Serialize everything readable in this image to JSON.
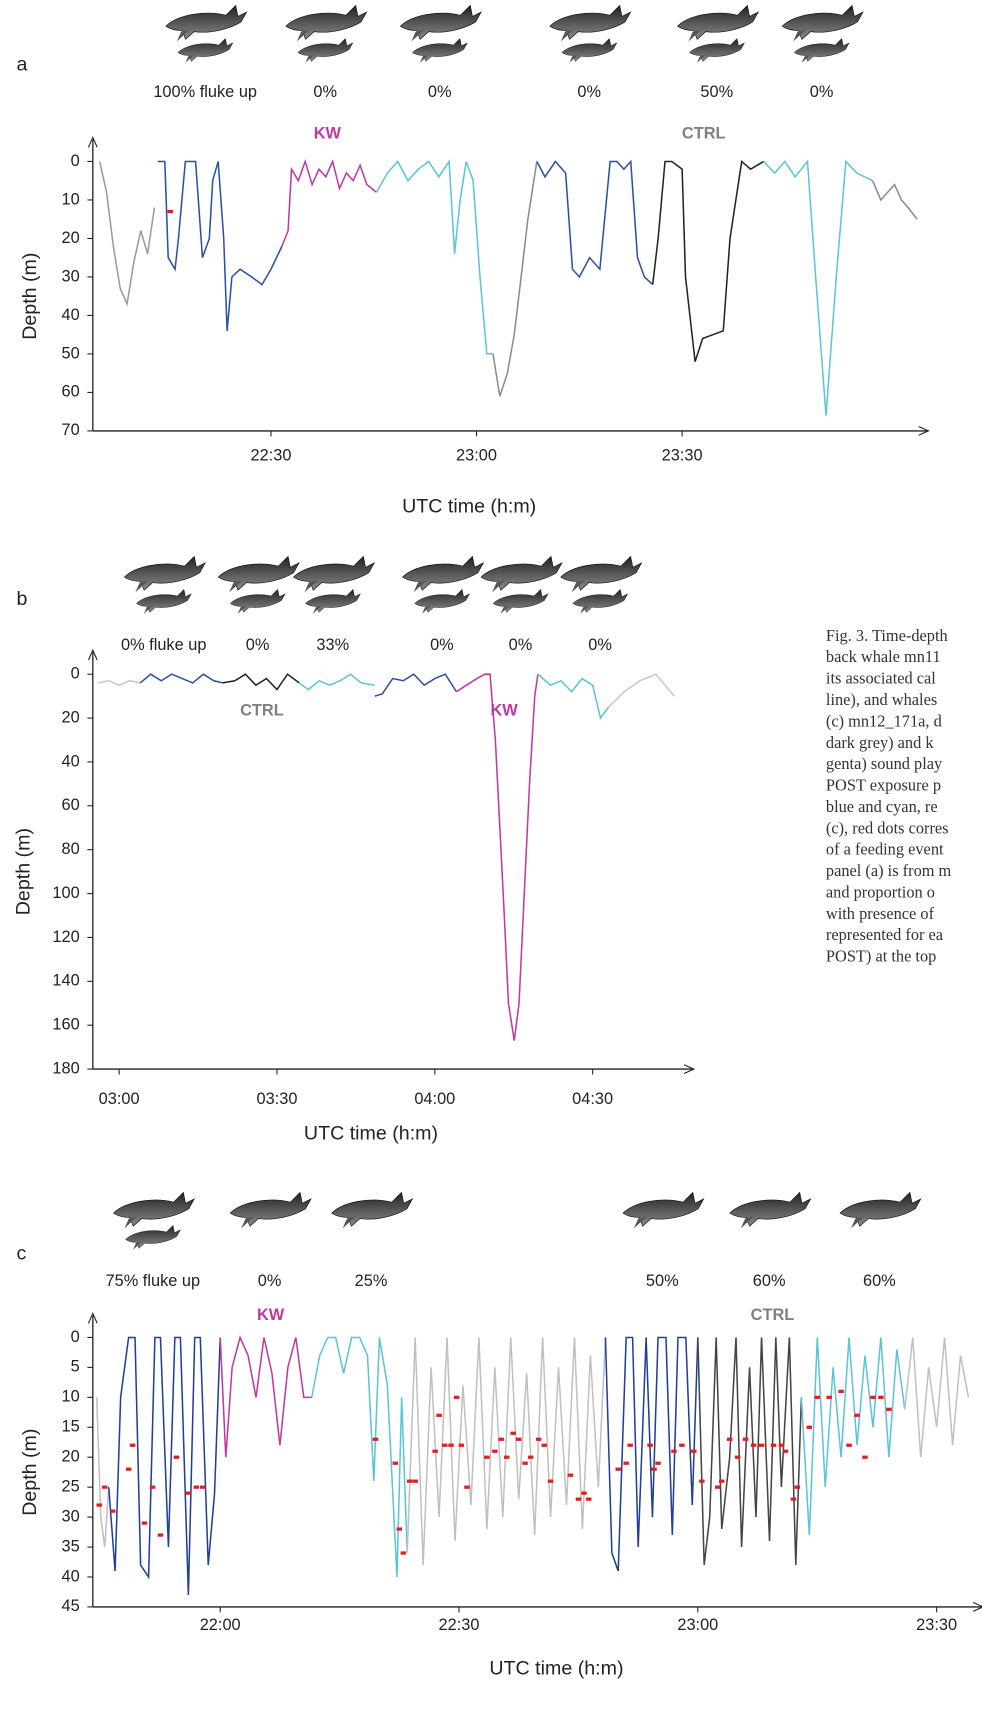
{
  "chart_data": [
    {
      "type": "line",
      "panel": "a",
      "y_inverted": true,
      "period_labels": [
        "100% fluke up",
        "0%",
        "0%",
        "0%",
        "50%",
        "0%"
      ],
      "markers": [
        {
          "text": "KW",
          "color": "#c0399e"
        },
        {
          "text": "CTRL",
          "color": "#808080"
        }
      ],
      "ylabel": "Depth (m)",
      "xlabel": "UTC time (h:m)",
      "xlim": [
        1324,
        1445
      ],
      "ylim": [
        0,
        70
      ],
      "xticks": [
        {
          "value": 1350,
          "label": "22:30"
        },
        {
          "value": 1380,
          "label": "23:00"
        },
        {
          "value": 1410,
          "label": "23:30"
        }
      ],
      "yticks": [
        0,
        10,
        20,
        30,
        40,
        50,
        60,
        70
      ],
      "series": [
        {
          "color": "#9a9a9a",
          "x": [
            1325,
            1326,
            1327,
            1328,
            1329,
            1330,
            1331,
            1332,
            1333
          ],
          "values": [
            0,
            8,
            22,
            33,
            37,
            26,
            18,
            24,
            12
          ]
        },
        {
          "color": "#2b4fa6",
          "x": [
            1333.5,
            1334.5,
            1335,
            1336,
            1336.5,
            1337.5,
            1339,
            1340,
            1341,
            1341.5,
            1342.3,
            1343.1,
            1343.6,
            1344.3,
            1345.5,
            1347.2,
            1348.7,
            1350,
            1351.6
          ],
          "values": [
            0,
            0,
            25,
            28,
            20,
            0,
            0,
            25,
            20,
            5,
            0,
            20,
            44,
            30,
            28,
            30,
            32,
            28,
            22
          ]
        },
        {
          "color": "#c0399e",
          "x": [
            1351.6,
            1352.5,
            1353,
            1354,
            1355,
            1356,
            1357,
            1358,
            1359,
            1360,
            1361,
            1362,
            1363,
            1364,
            1365.4
          ],
          "values": [
            22,
            18,
            2,
            5,
            0,
            6,
            2,
            4,
            0,
            7,
            3,
            5,
            1,
            6,
            8
          ]
        },
        {
          "color": "#5bc4d8",
          "x": [
            1365.4,
            1367,
            1368.5,
            1370,
            1371.5,
            1373,
            1374.5,
            1376,
            1376.8,
            1377.6,
            1378.5,
            1379.5,
            1380.5,
            1381.5,
            1382.4
          ],
          "values": [
            8,
            3,
            0,
            5,
            2,
            0,
            4,
            0,
            24,
            10,
            0,
            5,
            30,
            50,
            50
          ]
        },
        {
          "color": "#8a8a8a",
          "x": [
            1382.4,
            1383.4,
            1384.5,
            1385.5,
            1386.5,
            1387.5,
            1388.8
          ],
          "values": [
            50,
            61,
            55,
            45,
            30,
            15,
            0
          ]
        },
        {
          "color": "#2b4fa6",
          "x": [
            1388.8,
            1390,
            1391.5,
            1393,
            1394,
            1395,
            1396.5,
            1398,
            1399.5,
            1400.5,
            1401.5,
            1402.5,
            1403.5,
            1404.5,
            1405.7
          ],
          "values": [
            0,
            4,
            0,
            3,
            28,
            30,
            25,
            28,
            0,
            0,
            2,
            0,
            25,
            30,
            32
          ]
        },
        {
          "color": "#222222",
          "x": [
            1405.7,
            1406.5,
            1407.5,
            1408.5,
            1410,
            1410.5,
            1411.9,
            1413,
            1414.5,
            1416,
            1417,
            1418.7,
            1420,
            1421.9
          ],
          "values": [
            32,
            20,
            0,
            0,
            2,
            30,
            52,
            46,
            45,
            44,
            20,
            0,
            2,
            0
          ]
        },
        {
          "color": "#5bc4d8",
          "x": [
            1421.9,
            1423.5,
            1425,
            1426.5,
            1428.3,
            1429.5,
            1431,
            1432.5,
            1433.9,
            1435.5,
            1437.8
          ],
          "values": [
            0,
            3,
            0,
            4,
            0,
            30,
            66,
            30,
            0,
            3,
            5
          ]
        },
        {
          "color": "#8a8a8a",
          "x": [
            1437.8,
            1439,
            1440,
            1441,
            1442,
            1443,
            1444.3
          ],
          "values": [
            5,
            10,
            8,
            6,
            10,
            12,
            15
          ]
        }
      ],
      "feeding_events": {
        "color": "#e02020",
        "x": [
          1335.3
        ],
        "values": [
          13
        ]
      }
    },
    {
      "type": "line",
      "panel": "b",
      "y_inverted": true,
      "period_labels": [
        "0% fluke up",
        "0%",
        "33%",
        "0%",
        "0%",
        "0%"
      ],
      "markers": [
        {
          "text": "CTRL",
          "color": "#808080"
        },
        {
          "text": "KW",
          "color": "#c0399e"
        }
      ],
      "ylabel": "Depth (m)",
      "xlabel": "UTC time (h:m)",
      "xlim": [
        175,
        288
      ],
      "ylim": [
        0,
        180
      ],
      "xticks": [
        {
          "value": 180,
          "label": "03:00"
        },
        {
          "value": 210,
          "label": "03:30"
        },
        {
          "value": 240,
          "label": "04:00"
        },
        {
          "value": 270,
          "label": "04:30"
        }
      ],
      "yticks": [
        0,
        20,
        40,
        60,
        80,
        100,
        120,
        140,
        160,
        180
      ],
      "series": [
        {
          "color": "#c8c8c8",
          "x": [
            176,
            178,
            180,
            182,
            184
          ],
          "values": [
            4,
            3,
            5,
            3,
            4
          ]
        },
        {
          "color": "#2b4fa6",
          "x": [
            184,
            186,
            188,
            190,
            192,
            194,
            196,
            198,
            199.7
          ],
          "values": [
            4,
            0,
            3,
            0,
            2,
            4,
            0,
            3,
            4
          ]
        },
        {
          "color": "#222222",
          "x": [
            199.7,
            202,
            204,
            206,
            208,
            210,
            212,
            214.2
          ],
          "values": [
            4,
            3,
            0,
            5,
            2,
            7,
            0,
            4
          ]
        },
        {
          "color": "#5bc4d8",
          "x": [
            214.2,
            216,
            218,
            220,
            222,
            224,
            226,
            228.6
          ],
          "values": [
            4,
            7,
            3,
            5,
            3,
            0,
            4,
            5
          ]
        },
        {
          "color": "#2b4fa6",
          "x": [
            228.6,
            230,
            232,
            234,
            236,
            238,
            240,
            242,
            244.1
          ],
          "values": [
            10,
            9,
            2,
            3,
            0,
            5,
            2,
            0,
            8
          ]
        },
        {
          "color": "#c0399e",
          "x": [
            244.1,
            246,
            248,
            249.5,
            250.5,
            251.5,
            253,
            254,
            255.1,
            256,
            257,
            258,
            259,
            259.6
          ],
          "values": [
            8,
            5,
            2,
            0,
            0,
            30,
            100,
            150,
            167,
            150,
            100,
            50,
            10,
            0
          ]
        },
        {
          "color": "#5bc4d8",
          "x": [
            259.6,
            262,
            264,
            266,
            268,
            270,
            271.5,
            273
          ],
          "values": [
            0,
            5,
            3,
            8,
            2,
            5,
            20,
            15
          ]
        },
        {
          "color": "#c8c8c8",
          "x": [
            273,
            276,
            279,
            282,
            285.5
          ],
          "values": [
            15,
            8,
            3,
            0,
            10
          ]
        }
      ]
    },
    {
      "type": "line",
      "panel": "c",
      "y_inverted": true,
      "period_labels": [
        "75% fluke up",
        "0%",
        "25%",
        "50%",
        "60%",
        "60%"
      ],
      "markers": [
        {
          "text": "KW",
          "color": "#c0399e"
        },
        {
          "text": "CTRL",
          "color": "#808080"
        }
      ],
      "ylabel": "Depth (m)",
      "xlabel": "UTC time (h:m)",
      "xlim": [
        1304,
        1415
      ],
      "ylim": [
        0,
        45
      ],
      "xticks": [
        {
          "value": 1320,
          "label": "22:00"
        },
        {
          "value": 1350,
          "label": "22:30"
        },
        {
          "value": 1380,
          "label": "23:00"
        },
        {
          "value": 1410,
          "label": "23:30"
        }
      ],
      "yticks": [
        0,
        5,
        10,
        15,
        20,
        25,
        30,
        35,
        40,
        45
      ],
      "series": [
        {
          "color": "#c0c0c0",
          "x": [
            1304.5,
            1305,
            1305.5,
            1306
          ],
          "values": [
            10,
            30,
            35,
            25
          ]
        },
        {
          "color": "#1f3f9a",
          "x": [
            1306,
            1306.8,
            1307.5,
            1308.5,
            1309.3,
            1310,
            1311,
            1311.8,
            1312.5,
            1313.5,
            1314.3,
            1315,
            1316,
            1316.8,
            1317.5,
            1318.5,
            1319.3,
            1320
          ],
          "values": [
            25,
            39,
            10,
            0,
            0,
            38,
            40,
            0,
            0,
            35,
            0,
            0,
            43,
            0,
            0,
            38,
            26,
            0
          ]
        },
        {
          "color": "#c0399e",
          "x": [
            1320,
            1320.7,
            1321.5,
            1322.5,
            1323.5,
            1324.5,
            1325.5,
            1326.5,
            1327.5,
            1328.5,
            1329.5,
            1330.5,
            1331.5
          ],
          "values": [
            0,
            20,
            5,
            0,
            3,
            10,
            0,
            6,
            18,
            5,
            0,
            10,
            10
          ]
        },
        {
          "color": "#5bc4d8",
          "x": [
            1331.5,
            1332.5,
            1333.5,
            1334.5,
            1335.5,
            1336.5,
            1337.5,
            1338.5,
            1339.3,
            1340,
            1341,
            1342.2,
            1342.8,
            1343.5
          ],
          "values": [
            10,
            3,
            0,
            0,
            6,
            0,
            0,
            3,
            24,
            0,
            8,
            40,
            10,
            36
          ]
        },
        {
          "color": "#c0c0c0",
          "x": [
            1343.5,
            1344.5,
            1345.5,
            1346.5,
            1347.5,
            1348.5,
            1349.5,
            1350.5,
            1351.5,
            1352.5,
            1353.5,
            1354.5,
            1355.5,
            1356.5,
            1357.5,
            1358.5,
            1359.5,
            1360.5,
            1361.5,
            1362.5,
            1363.5,
            1364.5,
            1365.5,
            1366.5,
            1367.5,
            1368.4
          ],
          "values": [
            36,
            0,
            38,
            5,
            30,
            0,
            34,
            8,
            28,
            0,
            32,
            5,
            30,
            0,
            27,
            6,
            33,
            0,
            30,
            5,
            28,
            0,
            32,
            3,
            25,
            0
          ]
        },
        {
          "color": "#1f3f9a",
          "x": [
            1368.4,
            1369.2,
            1370,
            1371,
            1371.8,
            1372.5,
            1373.5,
            1374.3,
            1375,
            1376,
            1376.8,
            1377.5,
            1378.5,
            1379.3,
            1380
          ],
          "values": [
            0,
            36,
            39,
            0,
            0,
            35,
            0,
            30,
            0,
            0,
            33,
            0,
            0,
            28,
            0
          ]
        },
        {
          "color": "#444444",
          "x": [
            1380,
            1380.8,
            1381.5,
            1382.3,
            1383,
            1384,
            1384.8,
            1385.5,
            1386.5,
            1387.3,
            1388,
            1389,
            1389.8,
            1390.5,
            1391.5,
            1392.3,
            1393
          ],
          "values": [
            0,
            38,
            30,
            0,
            32,
            20,
            0,
            35,
            5,
            30,
            0,
            34,
            0,
            25,
            0,
            38,
            10
          ]
        },
        {
          "color": "#5bc4d8",
          "x": [
            1393,
            1394,
            1395,
            1396,
            1397,
            1398,
            1399,
            1400,
            1401,
            1402,
            1403,
            1404,
            1405,
            1406
          ],
          "values": [
            10,
            33,
            0,
            25,
            5,
            20,
            0,
            18,
            3,
            15,
            0,
            20,
            2,
            12
          ]
        },
        {
          "color": "#c0c0c0",
          "x": [
            1406,
            1407,
            1408,
            1409,
            1410,
            1411,
            1412,
            1413,
            1414
          ],
          "values": [
            12,
            0,
            20,
            5,
            15,
            0,
            18,
            3,
            10
          ]
        }
      ],
      "feeding_events": {
        "color": "#e02020",
        "x": [
          1304.8,
          1305.5,
          1306.5,
          1308.5,
          1309,
          1310.5,
          1311.5,
          1312.5,
          1314.5,
          1316,
          1317,
          1317.8,
          1339.5,
          1342,
          1342.5,
          1343,
          1343.8,
          1344.5,
          1347,
          1347.5,
          1348.2,
          1349,
          1349.7,
          1350.3,
          1351,
          1353.5,
          1354.5,
          1355.3,
          1356,
          1356.8,
          1357.5,
          1358.3,
          1359,
          1360,
          1360.7,
          1361.5,
          1364,
          1365,
          1365.7,
          1366.3,
          1370,
          1371,
          1371.5,
          1374,
          1374.5,
          1375,
          1377,
          1378,
          1379.5,
          1380.5,
          1382.5,
          1383,
          1384,
          1385,
          1386,
          1387,
          1388,
          1389.5,
          1390.5,
          1391,
          1392,
          1392.5,
          1394,
          1395,
          1396.5,
          1398,
          1399,
          1400,
          1401,
          1402,
          1403,
          1404
        ],
        "values": [
          28,
          25,
          29,
          22,
          18,
          31,
          25,
          33,
          20,
          26,
          25,
          25,
          17,
          21,
          32,
          36,
          24,
          24,
          19,
          13,
          18,
          18,
          10,
          18,
          25,
          20,
          19,
          17,
          20,
          16,
          17,
          21,
          20,
          17,
          18,
          24,
          23,
          27,
          26,
          27,
          22,
          21,
          18,
          18,
          22,
          21,
          19,
          18,
          19,
          24,
          25,
          24,
          17,
          20,
          17,
          18,
          18,
          18,
          18,
          19,
          27,
          25,
          15,
          10,
          10,
          9,
          18,
          13,
          20,
          10,
          10,
          12
        ]
      }
    }
  ],
  "caption": [
    "Fig. 3. Time-depth",
    "back whale mn11",
    "its associated cal",
    "line), and whales",
    "(c) mn12_171a, d",
    "dark grey) and k",
    "genta) sound play",
    "POST exposure p",
    "blue and cyan, re",
    "(c), red dots corres",
    "of a feeding event",
    "panel (a) is from m",
    "and proportion o",
    "with presence of",
    "represented for ea",
    "POST) at the top"
  ]
}
